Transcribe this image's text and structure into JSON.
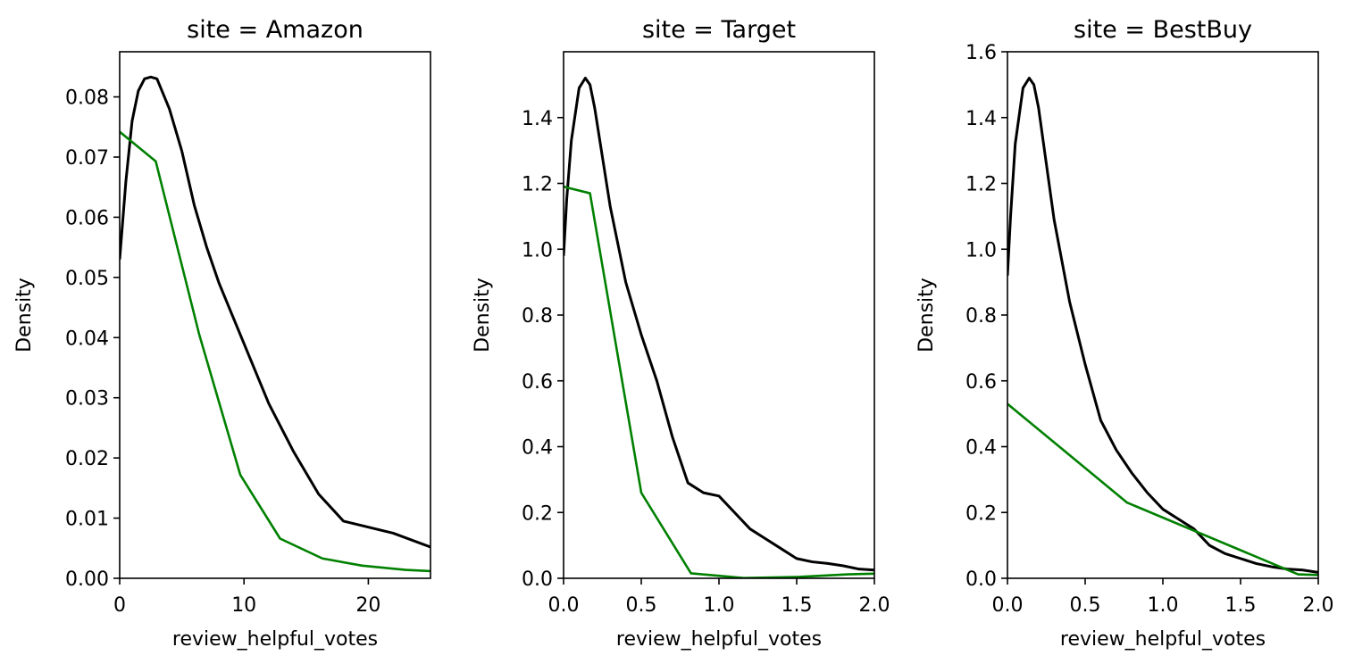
{
  "colors": {
    "kde_line": "#000000",
    "hist_line": "#008000",
    "frame": "#000000",
    "background": "#ffffff"
  },
  "chart_data": [
    {
      "type": "line",
      "title": "site = Amazon",
      "xlabel": "review_helpful_votes",
      "ylabel": "Density",
      "xlim": [
        0,
        25
      ],
      "ylim": [
        0,
        0.0875
      ],
      "xticks": [
        0,
        10,
        20
      ],
      "xtick_labels": [
        "0",
        "10",
        "20"
      ],
      "yticks": [
        0,
        0.01,
        0.02,
        0.03,
        0.04,
        0.05,
        0.06,
        0.07,
        0.08
      ],
      "ytick_labels": [
        "0.00",
        "0.01",
        "0.02",
        "0.03",
        "0.04",
        "0.05",
        "0.06",
        "0.07",
        "0.08"
      ],
      "grid": false,
      "series": [
        {
          "color": "#000000",
          "points": [
            [
              0,
              0.053
            ],
            [
              0.5,
              0.066
            ],
            [
              1,
              0.076
            ],
            [
              1.5,
              0.081
            ],
            [
              2,
              0.083
            ],
            [
              2.5,
              0.0833
            ],
            [
              3,
              0.083
            ],
            [
              4,
              0.078
            ],
            [
              5,
              0.071
            ],
            [
              6,
              0.062
            ],
            [
              7,
              0.055
            ],
            [
              8,
              0.049
            ],
            [
              10,
              0.039
            ],
            [
              12,
              0.029
            ],
            [
              14,
              0.021
            ],
            [
              16,
              0.014
            ],
            [
              18,
              0.0095
            ],
            [
              20,
              0.0085
            ],
            [
              22,
              0.0075
            ],
            [
              25,
              0.0052
            ]
          ]
        },
        {
          "color": "#008000",
          "points": [
            [
              0,
              0.0742
            ],
            [
              2.9,
              0.0693
            ],
            [
              6.4,
              0.0405
            ],
            [
              9.7,
              0.0172
            ],
            [
              12.9,
              0.0066
            ],
            [
              16.3,
              0.0033
            ],
            [
              19.5,
              0.0021
            ],
            [
              23,
              0.0014
            ],
            [
              25,
              0.0012
            ]
          ]
        }
      ]
    },
    {
      "type": "line",
      "title": "site = Target",
      "xlabel": "review_helpful_votes",
      "ylabel": "Density",
      "xlim": [
        0,
        2
      ],
      "ylim": [
        0,
        1.6
      ],
      "xticks": [
        0,
        0.5,
        1,
        1.5,
        2
      ],
      "xtick_labels": [
        "0.0",
        "0.5",
        "1.0",
        "1.5",
        "2.0"
      ],
      "yticks": [
        0,
        0.2,
        0.4,
        0.6,
        0.8,
        1.0,
        1.2,
        1.4
      ],
      "ytick_labels": [
        "0.0",
        "0.2",
        "0.4",
        "0.6",
        "0.8",
        "1.0",
        "1.2",
        "1.4"
      ],
      "grid": false,
      "series": [
        {
          "color": "#000000",
          "points": [
            [
              0,
              0.98
            ],
            [
              0.02,
              1.15
            ],
            [
              0.05,
              1.33
            ],
            [
              0.1,
              1.49
            ],
            [
              0.14,
              1.52
            ],
            [
              0.17,
              1.5
            ],
            [
              0.2,
              1.43
            ],
            [
              0.3,
              1.13
            ],
            [
              0.4,
              0.9
            ],
            [
              0.5,
              0.74
            ],
            [
              0.6,
              0.6
            ],
            [
              0.7,
              0.43
            ],
            [
              0.8,
              0.29
            ],
            [
              0.9,
              0.26
            ],
            [
              1.0,
              0.25
            ],
            [
              1.1,
              0.2
            ],
            [
              1.2,
              0.15
            ],
            [
              1.3,
              0.12
            ],
            [
              1.4,
              0.09
            ],
            [
              1.5,
              0.06
            ],
            [
              1.6,
              0.05
            ],
            [
              1.7,
              0.045
            ],
            [
              1.8,
              0.038
            ],
            [
              1.9,
              0.028
            ],
            [
              2.0,
              0.025
            ]
          ]
        },
        {
          "color": "#008000",
          "points": [
            [
              0,
              1.19
            ],
            [
              0.17,
              1.17
            ],
            [
              0.5,
              0.26
            ],
            [
              0.82,
              0.015
            ],
            [
              1.16,
              0.001
            ],
            [
              1.5,
              0.004
            ],
            [
              1.83,
              0.012
            ],
            [
              2.0,
              0.014
            ]
          ]
        }
      ]
    },
    {
      "type": "line",
      "title": "site = BestBuy",
      "xlabel": "review_helpful_votes",
      "ylabel": "Density",
      "xlim": [
        0,
        2
      ],
      "ylim": [
        0,
        1.6
      ],
      "xticks": [
        0,
        0.5,
        1,
        1.5,
        2
      ],
      "xtick_labels": [
        "0.0",
        "0.5",
        "1.0",
        "1.5",
        "2.0"
      ],
      "yticks": [
        0,
        0.2,
        0.4,
        0.6,
        0.8,
        1.0,
        1.2,
        1.4,
        1.6
      ],
      "ytick_labels": [
        "0.0",
        "0.2",
        "0.4",
        "0.6",
        "0.8",
        "1.0",
        "1.2",
        "1.4",
        "1.6"
      ],
      "grid": false,
      "series": [
        {
          "color": "#000000",
          "points": [
            [
              0,
              0.92
            ],
            [
              0.02,
              1.1
            ],
            [
              0.05,
              1.32
            ],
            [
              0.1,
              1.49
            ],
            [
              0.14,
              1.52
            ],
            [
              0.17,
              1.5
            ],
            [
              0.2,
              1.43
            ],
            [
              0.3,
              1.09
            ],
            [
              0.4,
              0.84
            ],
            [
              0.5,
              0.65
            ],
            [
              0.6,
              0.48
            ],
            [
              0.7,
              0.39
            ],
            [
              0.8,
              0.32
            ],
            [
              0.9,
              0.26
            ],
            [
              1.0,
              0.21
            ],
            [
              1.1,
              0.18
            ],
            [
              1.2,
              0.15
            ],
            [
              1.3,
              0.1
            ],
            [
              1.4,
              0.075
            ],
            [
              1.5,
              0.06
            ],
            [
              1.6,
              0.045
            ],
            [
              1.7,
              0.035
            ],
            [
              1.8,
              0.028
            ],
            [
              1.9,
              0.025
            ],
            [
              2.0,
              0.018
            ]
          ]
        },
        {
          "color": "#008000",
          "points": [
            [
              0,
              0.53
            ],
            [
              0.77,
              0.23
            ],
            [
              1.87,
              0.012
            ],
            [
              2.0,
              0.01
            ]
          ]
        }
      ]
    }
  ]
}
